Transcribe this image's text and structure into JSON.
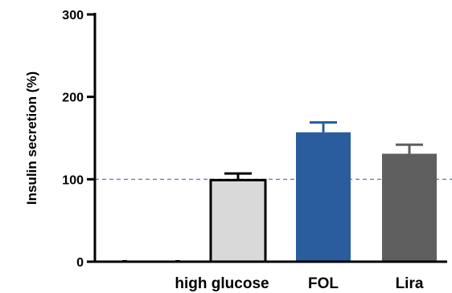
{
  "chart_data": {
    "type": "bar",
    "ylabel": "Insulin secretion (%)",
    "ylim": [
      0,
      300
    ],
    "yticks": [
      0,
      100,
      200,
      300
    ],
    "reference_line": 100,
    "categories": [
      "",
      "",
      "high glucose",
      "FOL",
      "Lira"
    ],
    "values": [
      0,
      0,
      99,
      157,
      131
    ],
    "errors": [
      0,
      0,
      8,
      12,
      11
    ],
    "colors": [
      "#d9d9d9",
      "#d9d9d9",
      "#d9d9d9",
      "#2a5d9e",
      "#5f5f5f"
    ],
    "reference_line_color": "#4a6fa5"
  }
}
